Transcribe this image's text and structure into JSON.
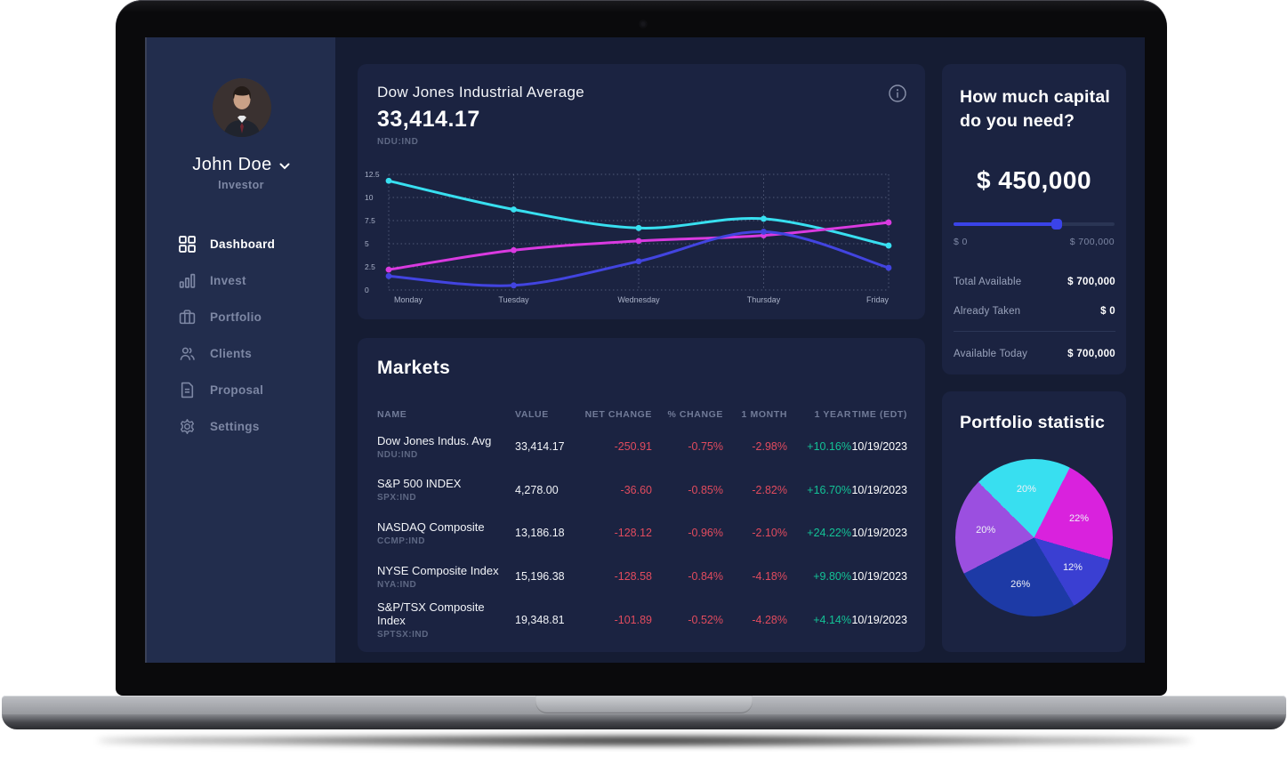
{
  "user": {
    "name": "John Doe",
    "role": "Investor"
  },
  "sidebar": {
    "items": [
      {
        "id": "dashboard",
        "label": "Dashboard",
        "icon": "dashboard-icon",
        "active": true
      },
      {
        "id": "invest",
        "label": "Invest",
        "icon": "invest-icon",
        "active": false
      },
      {
        "id": "portfolio",
        "label": "Portfolio",
        "icon": "portfolio-icon",
        "active": false
      },
      {
        "id": "clients",
        "label": "Clients",
        "icon": "clients-icon",
        "active": false
      },
      {
        "id": "proposal",
        "label": "Proposal",
        "icon": "proposal-icon",
        "active": false
      },
      {
        "id": "settings",
        "label": "Settings",
        "icon": "settings-icon",
        "active": false
      }
    ]
  },
  "index_card": {
    "title": "Dow Jones Industrial Average",
    "value": "33,414.17",
    "symbol": "NDU:IND",
    "info_icon": "info-icon"
  },
  "markets": {
    "title": "Markets",
    "columns": [
      "NAME",
      "VALUE",
      "NET CHANGE",
      "% CHANGE",
      "1 MONTH",
      "1 YEAR",
      "TIME (EDT)"
    ],
    "rows": [
      {
        "name": "Dow Jones Indus. Avg",
        "symbol": "NDU:IND",
        "value": "33,414.17",
        "net_change": "-250.91",
        "pct_change": "-0.75%",
        "one_month": "-2.98%",
        "one_year": "+10.16%",
        "time": "10/19/2023"
      },
      {
        "name": "S&P 500 INDEX",
        "symbol": "SPX:IND",
        "value": "4,278.00",
        "net_change": "-36.60",
        "pct_change": "-0.85%",
        "one_month": "-2.82%",
        "one_year": "+16.70%",
        "time": "10/19/2023"
      },
      {
        "name": "NASDAQ Composite",
        "symbol": "CCMP:IND",
        "value": "13,186.18",
        "net_change": "-128.12",
        "pct_change": "-0.96%",
        "one_month": "-2.10%",
        "one_year": "+24.22%",
        "time": "10/19/2023"
      },
      {
        "name": "NYSE Composite Index",
        "symbol": "NYA:IND",
        "value": "15,196.38",
        "net_change": "-128.58",
        "pct_change": "-0.84%",
        "one_month": "-4.18%",
        "one_year": "+9.80%",
        "time": "10/19/2023"
      },
      {
        "name": "S&P/TSX Composite Index",
        "symbol": "SPTSX:IND",
        "value": "19,348.81",
        "net_change": "-101.89",
        "pct_change": "-0.52%",
        "one_month": "-4.28%",
        "one_year": "+4.14%",
        "time": "10/19/2023"
      }
    ]
  },
  "capital": {
    "title": "How much capital do you need?",
    "amount": "$ 450,000",
    "slider": {
      "min": 0,
      "max": 700000,
      "value": 450000,
      "min_label": "$ 0",
      "max_label": "$ 700,000",
      "accent": "#3a43e8"
    },
    "rows": [
      {
        "label": "Total Available",
        "value": "$ 700,000"
      },
      {
        "label": "Already Taken",
        "value": "$ 0"
      }
    ],
    "footer_row": {
      "label": "Available Today",
      "value": "$ 700,000"
    }
  },
  "portfolio_card": {
    "title": "Portfolio statistic"
  },
  "chart_data": [
    {
      "type": "line",
      "title": "Dow Jones Industrial Average weekly",
      "x": [
        "Monday",
        "Tuesday",
        "Wednesday",
        "Thursday",
        "Friday"
      ],
      "ylim": [
        0,
        12.5
      ],
      "yticks": [
        0,
        2.5,
        5,
        7.5,
        10,
        12.5
      ],
      "grid": true,
      "legend": "none",
      "series": [
        {
          "name": "series-cyan",
          "color": "#38dff0",
          "values": [
            11.8,
            8.7,
            6.7,
            7.7,
            4.8
          ]
        },
        {
          "name": "series-magenta",
          "color": "#d93ae0",
          "values": [
            2.2,
            4.3,
            5.3,
            5.9,
            7.3
          ]
        },
        {
          "name": "series-blue",
          "color": "#4244e0",
          "values": [
            1.5,
            0.5,
            3.1,
            6.3,
            2.4
          ]
        }
      ]
    },
    {
      "type": "pie",
      "title": "Portfolio statistic",
      "labels": [
        "20%",
        "22%",
        "12%",
        "26%",
        "20%"
      ],
      "values": [
        20,
        22,
        12,
        26,
        20
      ],
      "colors": [
        "#38dff0",
        "#d922dd",
        "#3a3fd2",
        "#1d3aa6",
        "#9b4fe0"
      ],
      "start_angle": -45,
      "legend": "none"
    }
  ],
  "colors": {
    "app_bg": "#151c33",
    "sidebar_bg": "#222d4d",
    "card_bg": "#1b2341",
    "negative": "#e14b5e",
    "positive": "#13c296",
    "accent_blue": "#3a43e8"
  }
}
